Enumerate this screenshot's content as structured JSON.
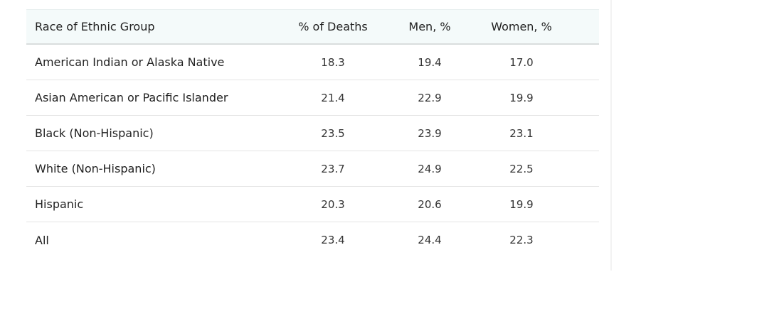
{
  "table": {
    "headers": {
      "group": "Race of Ethnic Group",
      "deaths": "% of Deaths",
      "men": "Men, %",
      "women": "Women, %"
    },
    "rows": [
      {
        "group": "American Indian or Alaska Native",
        "deaths": "18.3",
        "men": "19.4",
        "women": "17.0"
      },
      {
        "group": "Asian American or Pacific Islander",
        "deaths": "21.4",
        "men": "22.9",
        "women": "19.9"
      },
      {
        "group": "Black (Non-Hispanic)",
        "deaths": "23.5",
        "men": "23.9",
        "women": "23.1"
      },
      {
        "group": "White (Non-Hispanic)",
        "deaths": "23.7",
        "men": "24.9",
        "women": "22.5"
      },
      {
        "group": "Hispanic",
        "deaths": "20.3",
        "men": "20.6",
        "women": "19.9"
      },
      {
        "group": "All",
        "deaths": "23.4",
        "men": "24.4",
        "women": "22.3"
      }
    ]
  }
}
